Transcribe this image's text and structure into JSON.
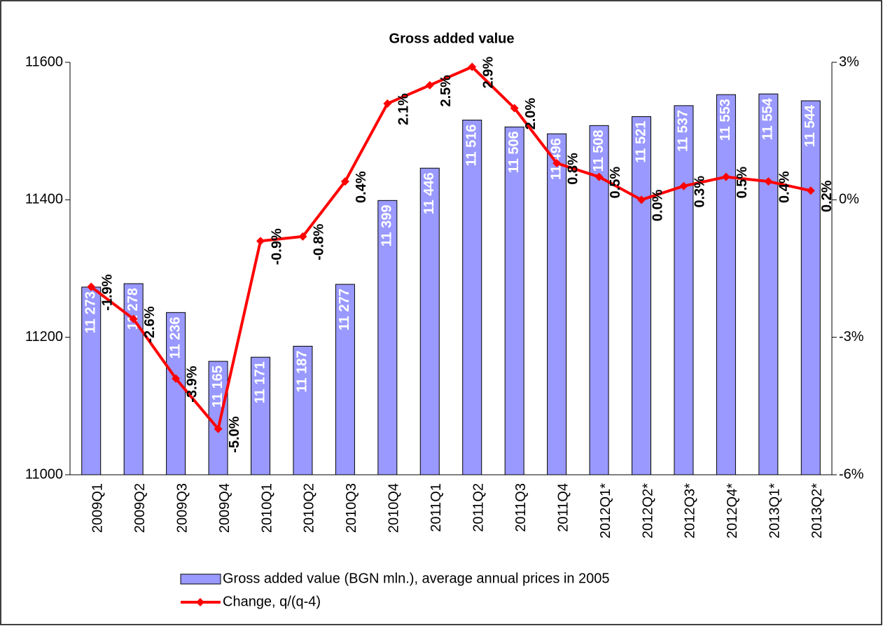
{
  "chart_data": {
    "type": "bar",
    "title": "Gross added value",
    "categories": [
      "2009Q1",
      "2009Q2",
      "2009Q3",
      "2009Q4",
      "2010Q1",
      "2010Q2",
      "2010Q3",
      "2010Q4",
      "2011Q1",
      "2011Q2",
      "2011Q3",
      "2011Q4",
      "2012Q1*",
      "2012Q2*",
      "2012Q3*",
      "2012Q4*",
      "2013Q1*",
      "2013Q2*"
    ],
    "series": [
      {
        "name": "Gross added value (BGN mln.), average annual prices in 2005",
        "type": "bar",
        "color": "#9999ff",
        "values": [
          11273,
          11278,
          11236,
          11165,
          11171,
          11187,
          11277,
          11399,
          11446,
          11516,
          11506,
          11496,
          11508,
          11521,
          11537,
          11553,
          11554,
          11544
        ],
        "value_labels": [
          "11 273",
          "11 278",
          "11 236",
          "11 165",
          "11 171",
          "11 187",
          "11 277",
          "11 399",
          "11 446",
          "11 516",
          "11 506",
          "11 496",
          "11 508",
          "11 521",
          "11 537",
          "11 553",
          "11 554",
          "11 544"
        ]
      },
      {
        "name": "Change, q/(q-4)",
        "type": "line",
        "axis": "y2",
        "color": "#ff0000",
        "values": [
          -1.9,
          -2.6,
          -3.9,
          -5.0,
          -0.9,
          -0.8,
          0.4,
          2.1,
          2.5,
          2.9,
          2.0,
          0.8,
          0.5,
          0.0,
          0.3,
          0.5,
          0.4,
          0.2
        ],
        "value_labels": [
          "-1.9%",
          "-2.6%",
          "-3.9%",
          "-5.0%",
          "-0.9%",
          "-0.8%",
          "0.4%",
          "2.1%",
          "2.5%",
          "2.9%",
          "2.0%",
          "0.8%",
          "0.5%",
          "0.0%",
          "0.3%",
          "0.5%",
          "0.4%",
          "0.2%"
        ]
      }
    ],
    "ylim": [
      11000,
      11600
    ],
    "yticks": [
      11000,
      11200,
      11400,
      11600
    ],
    "y2lim": [
      -6,
      3
    ],
    "y2ticks": [
      {
        "value": -6,
        "label": "-6%"
      },
      {
        "value": -3,
        "label": "-3%"
      },
      {
        "value": 0,
        "label": "0%"
      },
      {
        "value": 3,
        "label": "3%"
      }
    ]
  }
}
